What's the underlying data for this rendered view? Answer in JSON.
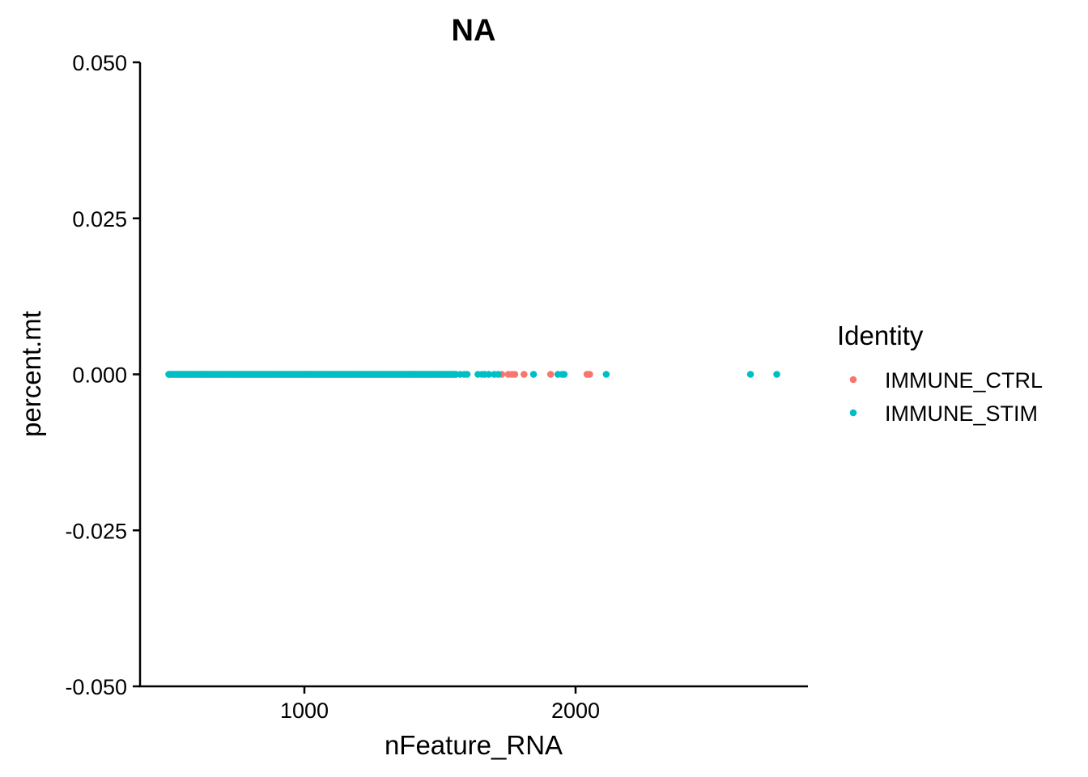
{
  "chart_data": {
    "type": "scatter",
    "title": "NA",
    "xlabel": "nFeature_RNA",
    "ylabel": "percent.mt",
    "xlim": [
      400,
      2865
    ],
    "ylim": [
      -0.05,
      0.05
    ],
    "x_ticks": [
      1000,
      2000
    ],
    "y_ticks": [
      0.05,
      0.025,
      0.0,
      -0.025,
      -0.05
    ],
    "y_tick_labels": [
      "0.050",
      "0.025",
      "0.000",
      "-0.025",
      "-0.050"
    ],
    "grid": false,
    "legend": {
      "title": "Identity",
      "position": "right"
    },
    "series": [
      {
        "name": "IMMUNE_CTRL",
        "color": "#F8766D",
        "points": [
          [
            1728,
            0
          ],
          [
            1752,
            0
          ],
          [
            1765,
            0
          ],
          [
            1776,
            0
          ],
          [
            1810,
            0
          ],
          [
            1908,
            0
          ],
          [
            2042,
            0
          ],
          [
            2052,
            0
          ]
        ]
      },
      {
        "name": "IMMUNE_STIM",
        "color": "#00BFC4",
        "dense_range": [
          500,
          1560
        ],
        "points": [
          [
            1575,
            0
          ],
          [
            1590,
            0
          ],
          [
            1600,
            0
          ],
          [
            1640,
            0
          ],
          [
            1655,
            0
          ],
          [
            1665,
            0
          ],
          [
            1680,
            0
          ],
          [
            1700,
            0
          ],
          [
            1715,
            0
          ],
          [
            1845,
            0
          ],
          [
            1935,
            0
          ],
          [
            1950,
            0
          ],
          [
            1958,
            0
          ],
          [
            2113,
            0
          ],
          [
            2645,
            0
          ],
          [
            2742,
            0
          ]
        ]
      }
    ]
  }
}
